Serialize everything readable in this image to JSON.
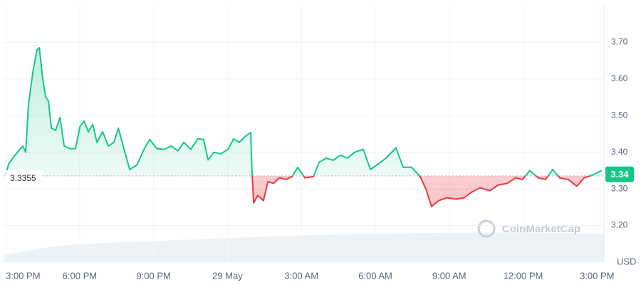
{
  "chart_data": {
    "type": "line",
    "currency_label": "USD",
    "watermark": "CoinMarketCap",
    "baseline": 3.3355,
    "last_price": 3.34,
    "up_color": "#16c784",
    "down_color": "#ea3943",
    "grid": true,
    "xlim": [
      -0.09,
      24.28
    ],
    "xticks": [
      {
        "value": 0,
        "label": "3:00 PM"
      },
      {
        "value": 3,
        "label": "6:00 PM"
      },
      {
        "value": 6,
        "label": "9:00 PM"
      },
      {
        "value": 9,
        "label": "29 May"
      },
      {
        "value": 12,
        "label": "3:00 AM"
      },
      {
        "value": 15,
        "label": "6:00 AM"
      },
      {
        "value": 18,
        "label": "9:00 AM"
      },
      {
        "value": 21,
        "label": "12:00 PM"
      },
      {
        "value": 24,
        "label": "3:00 PM"
      }
    ],
    "ylim": [
      3.1,
      3.8
    ],
    "yticks": [
      {
        "value": 3.2,
        "label": "3.20"
      },
      {
        "value": 3.3,
        "label": "3.30"
      },
      {
        "value": 3.4,
        "label": "3.40"
      },
      {
        "value": 3.5,
        "label": "3.50"
      },
      {
        "value": 3.6,
        "label": "3.60"
      },
      {
        "value": 3.7,
        "label": "3.70"
      }
    ],
    "x": [
      0.0,
      0.12,
      0.4,
      0.69,
      0.81,
      0.92,
      1.1,
      1.27,
      1.36,
      1.5,
      1.62,
      1.73,
      1.85,
      2.02,
      2.2,
      2.37,
      2.6,
      2.83,
      3.01,
      3.18,
      3.35,
      3.53,
      3.7,
      3.93,
      4.16,
      4.39,
      4.57,
      4.8,
      5.03,
      5.32,
      5.61,
      5.84,
      6.13,
      6.42,
      6.71,
      6.99,
      7.23,
      7.51,
      7.8,
      8.03,
      8.21,
      8.44,
      8.73,
      9.02,
      9.25,
      9.48,
      9.71,
      9.94,
      10.0,
      10.06,
      10.23,
      10.46,
      10.64,
      10.87,
      11.1,
      11.39,
      11.62,
      11.85,
      12.14,
      12.49,
      12.72,
      13.01,
      13.29,
      13.58,
      13.87,
      14.16,
      14.51,
      14.8,
      15.14,
      15.43,
      15.84,
      16.13,
      16.47,
      16.82,
      17.05,
      17.28,
      17.57,
      17.92,
      18.27,
      18.61,
      18.9,
      19.25,
      19.65,
      20.0,
      20.35,
      20.69,
      20.98,
      21.27,
      21.62,
      21.91,
      22.2,
      22.49,
      22.83,
      23.18,
      23.47,
      23.82,
      24.19
    ],
    "values": [
      3.34,
      3.369,
      3.394,
      3.417,
      3.4,
      3.528,
      3.62,
      3.68,
      3.685,
      3.6,
      3.55,
      3.54,
      3.466,
      3.46,
      3.495,
      3.417,
      3.41,
      3.41,
      3.47,
      3.485,
      3.456,
      3.476,
      3.427,
      3.456,
      3.417,
      3.427,
      3.466,
      3.408,
      3.353,
      3.365,
      3.408,
      3.435,
      3.41,
      3.408,
      3.417,
      3.404,
      3.427,
      3.408,
      3.437,
      3.435,
      3.379,
      3.4,
      3.396,
      3.408,
      3.437,
      3.427,
      3.443,
      3.454,
      3.34,
      3.262,
      3.282,
      3.268,
      3.32,
      3.315,
      3.33,
      3.326,
      3.334,
      3.359,
      3.33,
      3.334,
      3.373,
      3.384,
      3.378,
      3.392,
      3.384,
      3.4,
      3.408,
      3.353,
      3.369,
      3.384,
      3.412,
      3.359,
      3.359,
      3.334,
      3.3,
      3.252,
      3.268,
      3.276,
      3.272,
      3.276,
      3.291,
      3.303,
      3.295,
      3.311,
      3.315,
      3.33,
      3.326,
      3.35,
      3.33,
      3.326,
      3.353,
      3.33,
      3.326,
      3.307,
      3.33,
      3.338,
      3.35
    ]
  }
}
